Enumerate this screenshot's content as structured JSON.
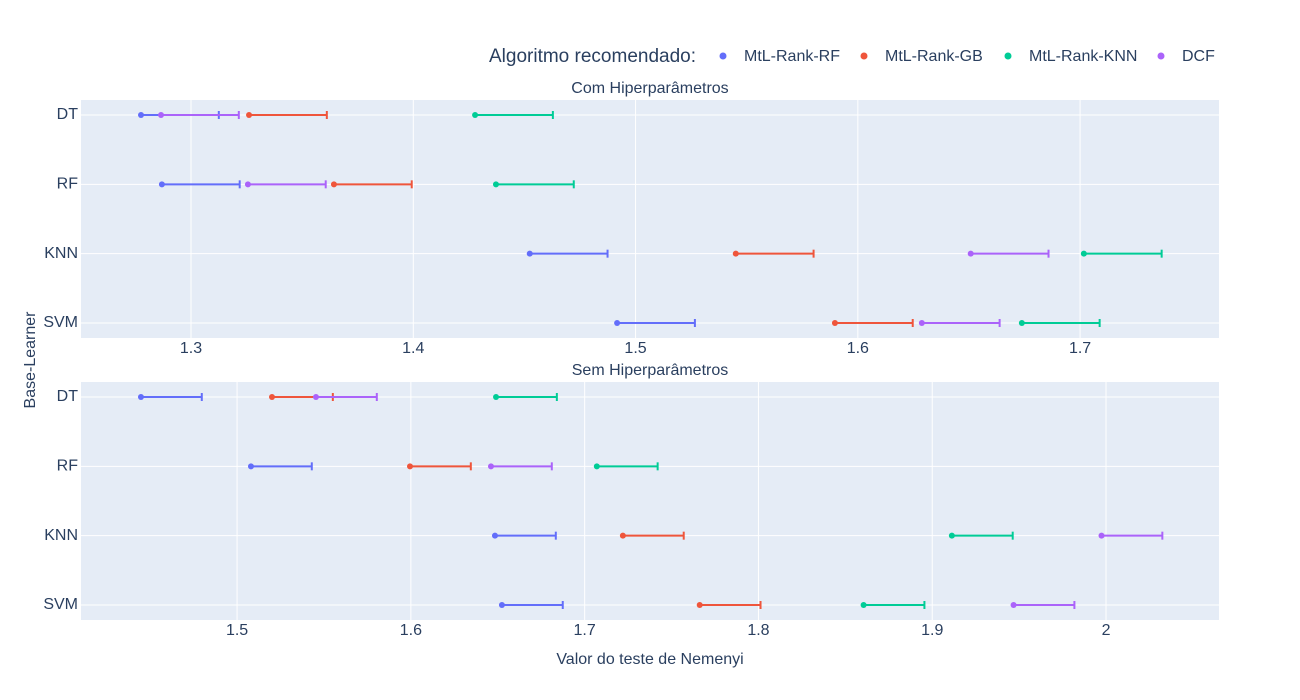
{
  "chart_data": {
    "type": "scatter",
    "legend_title": "Algoritmo recomendado:",
    "xlabel": "Valor do teste de Nemenyi",
    "ylabel": "Base-Learner",
    "grid": true,
    "subplots": [
      {
        "title": "Com Hiperparâmetros",
        "categories": [
          "DT",
          "RF",
          "KNN",
          "SVM"
        ],
        "xlim": [
          1.2505,
          1.7625
        ],
        "xticks": [
          1.3,
          1.4,
          1.5,
          1.6,
          1.7
        ],
        "series": [
          {
            "name": "MtL-Rank-RF",
            "color": "#636efa",
            "values": [
              1.2775,
              1.2869,
              1.4524,
              1.4917
            ],
            "errors": [
              0.035,
              0.035,
              0.035,
              0.035
            ]
          },
          {
            "name": "MtL-Rank-GB",
            "color": "#ef553b",
            "values": [
              1.3261,
              1.3643,
              1.5451,
              1.5897
            ],
            "errors": [
              0.035,
              0.035,
              0.035,
              0.035
            ]
          },
          {
            "name": "MtL-Rank-KNN",
            "color": "#00cc96",
            "values": [
              1.4278,
              1.4372,
              1.7017,
              1.6738
            ],
            "errors": [
              0.035,
              0.035,
              0.035,
              0.035
            ]
          },
          {
            "name": "DCF",
            "color": "#ab63fa",
            "values": [
              1.2865,
              1.3256,
              1.6508,
              1.6288
            ],
            "errors": [
              0.035,
              0.035,
              0.035,
              0.035
            ]
          }
        ]
      },
      {
        "title": "Sem Hiperparâmetros",
        "categories": [
          "DT",
          "RF",
          "KNN",
          "SVM"
        ],
        "xlim": [
          1.4102,
          2.065
        ],
        "xticks": [
          1.5,
          1.6,
          1.7,
          1.8,
          1.9,
          2
        ],
        "series": [
          {
            "name": "MtL-Rank-RF",
            "color": "#636efa",
            "values": [
              1.4447,
              1.508,
              1.6484,
              1.6524
            ],
            "errors": [
              0.035,
              0.035,
              0.035,
              0.035
            ]
          },
          {
            "name": "MtL-Rank-GB",
            "color": "#ef553b",
            "values": [
              1.5201,
              1.5995,
              1.722,
              1.7662
            ],
            "errors": [
              0.035,
              0.035,
              0.035,
              0.035
            ]
          },
          {
            "name": "MtL-Rank-KNN",
            "color": "#00cc96",
            "values": [
              1.649,
              1.707,
              1.9113,
              1.8605
            ],
            "errors": [
              0.035,
              0.035,
              0.035,
              0.035
            ]
          },
          {
            "name": "DCF",
            "color": "#ab63fa",
            "values": [
              1.5454,
              1.6461,
              1.9974,
              1.9468
            ],
            "errors": [
              0.035,
              0.035,
              0.035,
              0.035
            ]
          }
        ]
      }
    ]
  }
}
